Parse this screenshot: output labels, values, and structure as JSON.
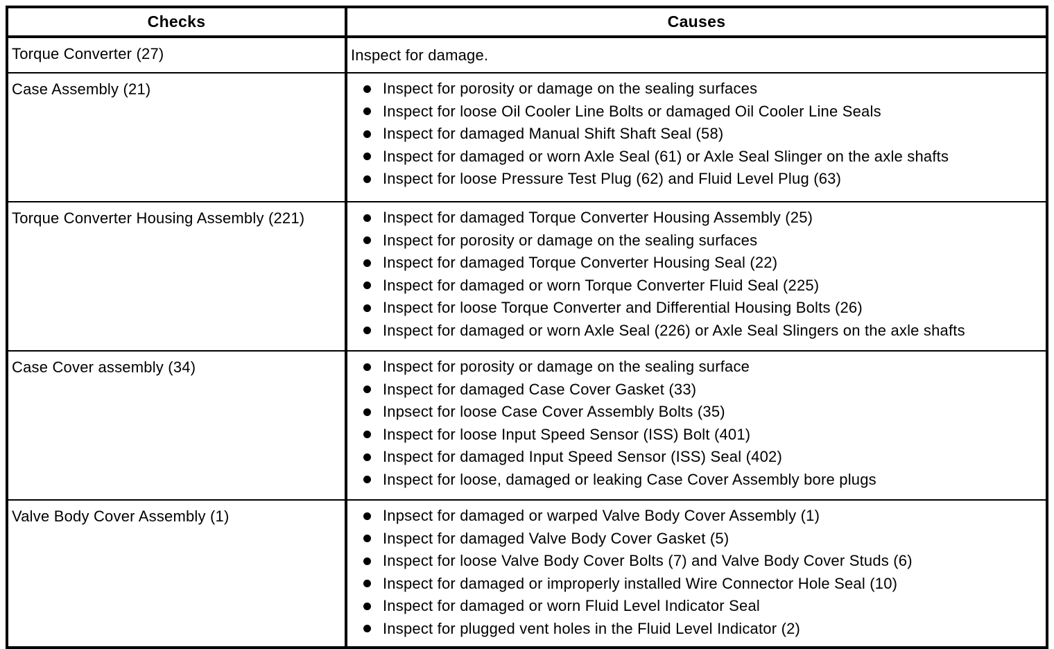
{
  "colors": {
    "border": "#000000",
    "text": "#000000",
    "background": "#ffffff"
  },
  "table": {
    "headers": {
      "checks": "Checks",
      "causes": "Causes"
    },
    "rows": [
      {
        "check": "Torque Converter (27)",
        "bulleted": false,
        "causes": [
          "Inspect for damage."
        ]
      },
      {
        "check": "Case Assembly (21)",
        "bulleted": true,
        "causes": [
          "Inspect for porosity or damage on the sealing surfaces",
          "Inspect for loose Oil Cooler Line Bolts or damaged Oil Cooler Line Seals",
          "Inspect for damaged Manual Shift Shaft Seal (58)",
          "Inspect for damaged or worn Axle Seal (61) or Axle Seal Slinger on the axle shafts",
          "Inspect for loose Pressure Test Plug (62) and Fluid Level Plug (63)"
        ]
      },
      {
        "check": "Torque Converter Housing Assembly (221)",
        "bulleted": true,
        "causes": [
          "Inspect for damaged Torque Converter Housing Assembly (25)",
          "Inspect for porosity or damage on the sealing surfaces",
          "Inspect for damaged Torque Converter Housing Seal (22)",
          "Inspect for damaged or worn Torque Converter Fluid Seal (225)",
          "Inspect for loose Torque Converter and Differential Housing Bolts (26)",
          "Inspect for damaged or worn Axle Seal (226) or Axle Seal Slingers on the axle shafts"
        ]
      },
      {
        "check": "Case Cover assembly (34)",
        "bulleted": true,
        "causes": [
          "Inspect for porosity or damage on the sealing surface",
          "Inspect for damaged Case Cover Gasket (33)",
          "Inpsect for loose Case Cover Assembly Bolts (35)",
          "Inspect for loose Input Speed Sensor (ISS) Bolt (401)",
          "Inspect for damaged Input Speed Sensor (ISS) Seal (402)",
          "Inspect for loose, damaged or leaking Case Cover Assembly bore plugs"
        ]
      },
      {
        "check": "Valve Body Cover Assembly (1)",
        "bulleted": true,
        "causes": [
          "Inpsect for damaged or warped Valve Body Cover Assembly (1)",
          "Inspect for damaged Valve Body Cover Gasket (5)",
          "Inspect for loose Valve Body Cover Bolts (7) and Valve Body Cover Studs (6)",
          "Inspect for damaged or improperly installed Wire Connector Hole Seal (10)",
          "Inspect for damaged or worn Fluid Level Indicator Seal",
          "Inspect for plugged vent holes in the Fluid Level Indicator (2)"
        ]
      }
    ]
  }
}
